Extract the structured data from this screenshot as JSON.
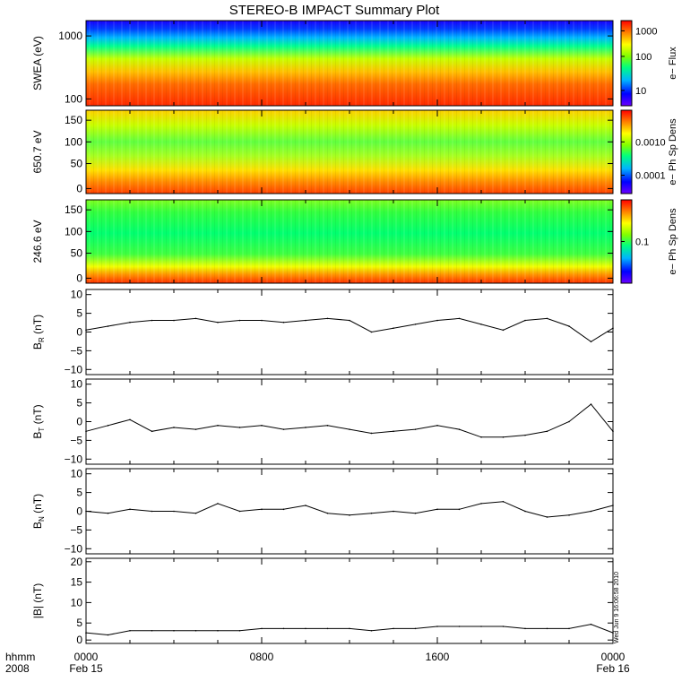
{
  "title": "STEREO-B IMPACT Summary Plot",
  "side_stamp": "Wed Jun  9 16:06:58 2010",
  "colors": {
    "axis": "#000000",
    "trace": "#000000",
    "colorbar": [
      "#6a00ff",
      "#0000ff",
      "#00b4ff",
      "#00ff80",
      "#80ff00",
      "#ffff00",
      "#ff8000",
      "#ff0000"
    ]
  },
  "chart_data": [
    {
      "type": "heatmap",
      "ylabel": "SWEA (eV)",
      "yscale": "log",
      "ylim": [
        100,
        1800
      ],
      "yticks": [
        "1000",
        "100"
      ],
      "colorbar_label": "e− Flux",
      "colorbar_ticks": [
        "1000",
        "100",
        "10"
      ],
      "colorbar_scale": "log"
    },
    {
      "type": "heatmap",
      "ylabel": "650.7 eV",
      "ylim": [
        0,
        180
      ],
      "yticks": [
        "150",
        "100",
        "50",
        "0"
      ],
      "colorbar_label": "e− Ph Sp Dens",
      "colorbar_ticks": [
        "0.0010",
        "0.0001"
      ],
      "colorbar_scale": "log"
    },
    {
      "type": "heatmap",
      "ylabel": "246.6 eV",
      "ylim": [
        0,
        180
      ],
      "yticks": [
        "150",
        "100",
        "50",
        "0"
      ],
      "colorbar_label": "e− Ph Sp Dens",
      "colorbar_ticks": [
        "0.1"
      ],
      "colorbar_scale": "log"
    },
    {
      "type": "line",
      "ylabel_main": "B",
      "ylabel_sub": "R",
      "ylabel_unit": "(nT)",
      "ylim": [
        -11,
        11
      ],
      "yticks": [
        "10",
        "5",
        "0",
        "−5",
        "−10"
      ],
      "x": [
        0,
        1,
        2,
        3,
        4,
        5,
        6,
        7,
        8,
        9,
        10,
        11,
        12,
        13,
        14,
        15,
        16,
        17,
        18,
        19,
        20,
        21,
        22,
        23,
        24
      ],
      "y": [
        0.5,
        1.5,
        2.5,
        3,
        3,
        3.5,
        2.5,
        3,
        3,
        2.5,
        3,
        3.5,
        3,
        0,
        1,
        2,
        3,
        3.5,
        2,
        0.5,
        3,
        3.5,
        1.5,
        -2.5,
        1
      ]
    },
    {
      "type": "line",
      "ylabel_main": "B",
      "ylabel_sub": "T",
      "ylabel_unit": "(nT)",
      "ylim": [
        -11,
        11
      ],
      "yticks": [
        "10",
        "5",
        "0",
        "−5",
        "−10"
      ],
      "x": [
        0,
        1,
        2,
        3,
        4,
        5,
        6,
        7,
        8,
        9,
        10,
        11,
        12,
        13,
        14,
        15,
        16,
        17,
        18,
        19,
        20,
        21,
        22,
        23,
        24
      ],
      "y": [
        -2.5,
        -1,
        0.5,
        -2.5,
        -1.5,
        -2,
        -1,
        -1.5,
        -1,
        -2,
        -1.5,
        -1,
        -2,
        -3,
        -2.5,
        -2,
        -1,
        -2,
        -4,
        -4,
        -3.5,
        -2.5,
        0,
        4.5,
        -2.5
      ]
    },
    {
      "type": "line",
      "ylabel_main": "B",
      "ylabel_sub": "N",
      "ylabel_unit": "(nT)",
      "ylim": [
        -11,
        11
      ],
      "yticks": [
        "10",
        "5",
        "0",
        "−5",
        "−10"
      ],
      "x": [
        0,
        1,
        2,
        3,
        4,
        5,
        6,
        7,
        8,
        9,
        10,
        11,
        12,
        13,
        14,
        15,
        16,
        17,
        18,
        19,
        20,
        21,
        22,
        23,
        24
      ],
      "y": [
        0,
        -0.5,
        0.5,
        0,
        0,
        -0.5,
        2,
        0,
        0.5,
        0.5,
        1.5,
        -0.5,
        -1,
        -0.5,
        0,
        -0.5,
        0.5,
        0.5,
        2,
        2.5,
        0,
        -1.5,
        -1,
        0,
        1.5
      ]
    },
    {
      "type": "line",
      "ylabel_main": "|B|",
      "ylabel_unit": "(nT)",
      "ylim": [
        0,
        20
      ],
      "yticks": [
        "20",
        "15",
        "10",
        "5",
        "0"
      ],
      "x": [
        0,
        1,
        2,
        3,
        4,
        5,
        6,
        7,
        8,
        9,
        10,
        11,
        12,
        13,
        14,
        15,
        16,
        17,
        18,
        19,
        20,
        21,
        22,
        23,
        24
      ],
      "y": [
        2.5,
        2,
        3,
        3,
        3,
        3,
        3,
        3,
        3.5,
        3.5,
        3.5,
        3.5,
        3.5,
        3,
        3.5,
        3.5,
        4,
        4,
        4,
        4,
        3.5,
        3.5,
        3.5,
        4.5,
        2.5
      ]
    }
  ],
  "x_axis": {
    "row1_label": "hhmm",
    "row2_label": "2008",
    "ticks": [
      {
        "top": "0000",
        "bottom": "Feb 15"
      },
      {
        "top": "0800",
        "bottom": ""
      },
      {
        "top": "1600",
        "bottom": ""
      },
      {
        "top": "0000",
        "bottom": "Feb 16"
      }
    ]
  }
}
